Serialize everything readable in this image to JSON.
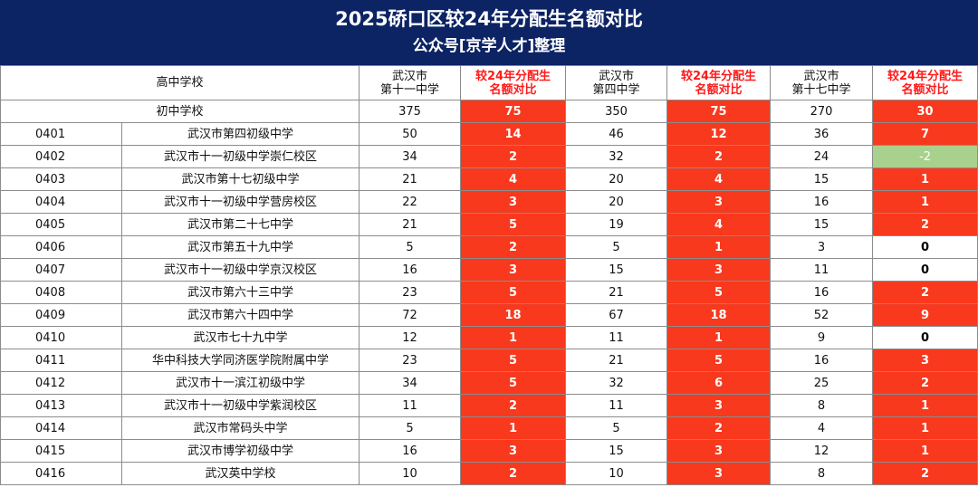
{
  "header": {
    "title": "2025硚口区较24年分配生名额对比",
    "subtitle": "公众号[京学人才]整理"
  },
  "columns": {
    "high_school_label": "高中学校",
    "middle_school_label": "初中学校",
    "schools": [
      {
        "name_line1": "武汉市",
        "name_line2": "第十一中学",
        "diff_line1": "较24年分配生",
        "diff_line2": "名额对比",
        "total": "375",
        "total_diff": "75"
      },
      {
        "name_line1": "武汉市",
        "name_line2": "第四中学",
        "diff_line1": "较24年分配生",
        "diff_line2": "名额对比",
        "total": "350",
        "total_diff": "75"
      },
      {
        "name_line1": "武汉市",
        "name_line2": "第十七中学",
        "diff_line1": "较24年分配生",
        "diff_line2": "名额对比",
        "total": "270",
        "total_diff": "30"
      }
    ]
  },
  "rows": [
    {
      "code": "0401",
      "name": "武汉市第四初级中学",
      "c1": "50",
      "d1": "14",
      "c2": "46",
      "d2": "12",
      "c3": "36",
      "d3": "7"
    },
    {
      "code": "0402",
      "name": "武汉市十一初级中学崇仁校区",
      "c1": "34",
      "d1": "2",
      "c2": "32",
      "d2": "2",
      "c3": "24",
      "d3": "-2"
    },
    {
      "code": "0403",
      "name": "武汉市第十七初级中学",
      "c1": "21",
      "d1": "4",
      "c2": "20",
      "d2": "4",
      "c3": "15",
      "d3": "1"
    },
    {
      "code": "0404",
      "name": "武汉市十一初级中学营房校区",
      "c1": "22",
      "d1": "3",
      "c2": "20",
      "d2": "3",
      "c3": "16",
      "d3": "1"
    },
    {
      "code": "0405",
      "name": "武汉市第二十七中学",
      "c1": "21",
      "d1": "5",
      "c2": "19",
      "d2": "4",
      "c3": "15",
      "d3": "2"
    },
    {
      "code": "0406",
      "name": "武汉市第五十九中学",
      "c1": "5",
      "d1": "2",
      "c2": "5",
      "d2": "1",
      "c3": "3",
      "d3": "0"
    },
    {
      "code": "0407",
      "name": "武汉市十一初级中学京汉校区",
      "c1": "16",
      "d1": "3",
      "c2": "15",
      "d2": "3",
      "c3": "11",
      "d3": "0"
    },
    {
      "code": "0408",
      "name": "武汉市第六十三中学",
      "c1": "23",
      "d1": "5",
      "c2": "21",
      "d2": "5",
      "c3": "16",
      "d3": "2"
    },
    {
      "code": "0409",
      "name": "武汉市第六十四中学",
      "c1": "72",
      "d1": "18",
      "c2": "67",
      "d2": "18",
      "c3": "52",
      "d3": "9"
    },
    {
      "code": "0410",
      "name": "武汉市七十九中学",
      "c1": "12",
      "d1": "1",
      "c2": "11",
      "d2": "1",
      "c3": "9",
      "d3": "0"
    },
    {
      "code": "0411",
      "name": "华中科技大学同济医学院附属中学",
      "c1": "23",
      "d1": "5",
      "c2": "21",
      "d2": "5",
      "c3": "16",
      "d3": "3"
    },
    {
      "code": "0412",
      "name": "武汉市十一滨江初级中学",
      "c1": "34",
      "d1": "5",
      "c2": "32",
      "d2": "6",
      "c3": "25",
      "d3": "2"
    },
    {
      "code": "0413",
      "name": "武汉市十一初级中学紫润校区",
      "c1": "11",
      "d1": "2",
      "c2": "11",
      "d2": "3",
      "c3": "8",
      "d3": "1"
    },
    {
      "code": "0414",
      "name": "武汉市常码头中学",
      "c1": "5",
      "d1": "1",
      "c2": "5",
      "d2": "2",
      "c3": "4",
      "d3": "1"
    },
    {
      "code": "0415",
      "name": "武汉市博学初级中学",
      "c1": "16",
      "d1": "3",
      "c2": "15",
      "d2": "3",
      "c3": "12",
      "d3": "1"
    },
    {
      "code": "0416",
      "name": "武汉英中学校",
      "c1": "10",
      "d1": "2",
      "c2": "10",
      "d2": "3",
      "c3": "8",
      "d3": "2"
    }
  ],
  "colors": {
    "header_bg": "#0c2364",
    "positive_cell": "#f8391d",
    "negative_cell": "#a9d18e",
    "diff_header_text": "#ff1a1a"
  }
}
